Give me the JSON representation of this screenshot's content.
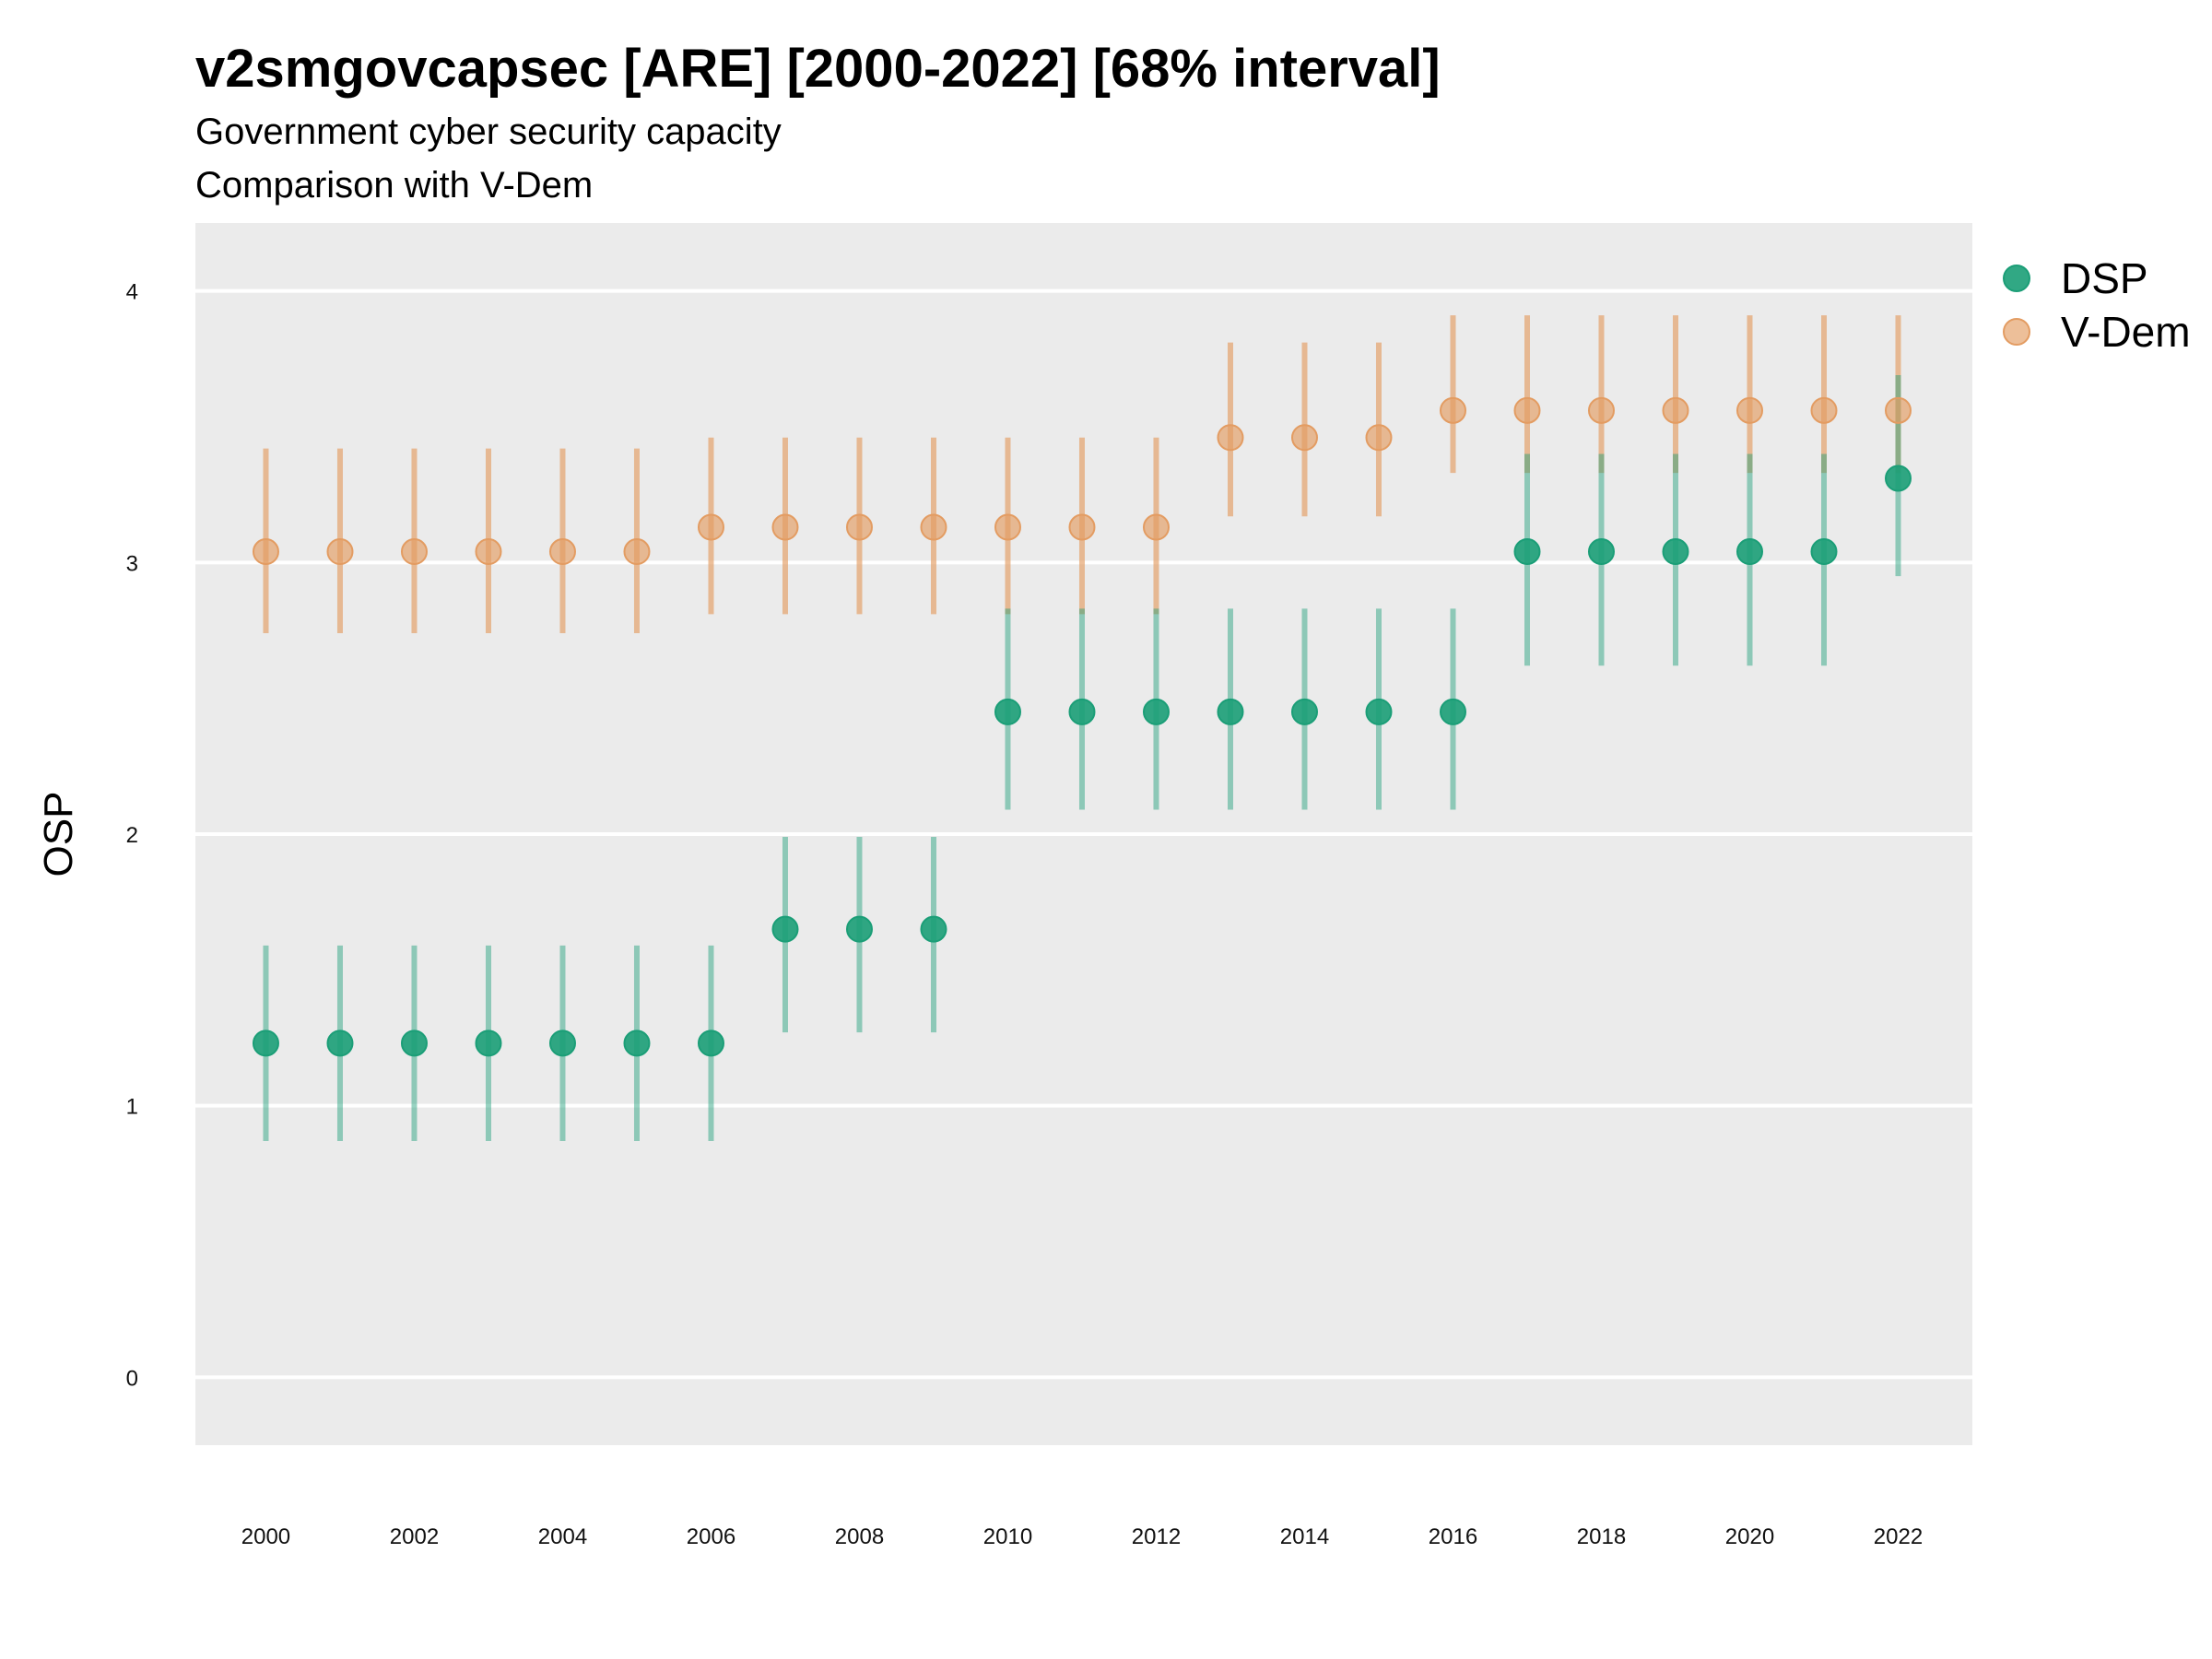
{
  "colors": {
    "dsp": "#1b9e77",
    "vdem": "#e39c62",
    "panel": "#ebebeb",
    "grid": "#ffffff"
  },
  "chart_data": {
    "type": "scatter",
    "title": "v2smgovcapsec [ARE] [2000-2022] [68% interval]",
    "subtitle": "Government cyber security capacity",
    "subtitle2": "Comparison with V-Dem",
    "xlabel": "",
    "ylabel": "OSP",
    "ylim": [
      -0.25,
      4.25
    ],
    "xlim": [
      1999.05,
      2023.0
    ],
    "yticks": [
      0,
      1,
      2,
      3,
      4
    ],
    "xticks": [
      2000,
      2002,
      2004,
      2006,
      2008,
      2010,
      2012,
      2014,
      2016,
      2018,
      2020,
      2022
    ],
    "legend_position": "right-top",
    "series": [
      {
        "name": "DSP",
        "x": [
          2000,
          2001,
          2002,
          2003,
          2004,
          2005,
          2006,
          2007,
          2008,
          2009,
          2010,
          2011,
          2012,
          2013,
          2014,
          2015,
          2016,
          2017,
          2018,
          2019,
          2020,
          2021,
          2022
        ],
        "y": [
          1.23,
          1.23,
          1.23,
          1.23,
          1.23,
          1.23,
          1.23,
          1.65,
          1.65,
          1.65,
          2.45,
          2.45,
          2.45,
          2.45,
          2.45,
          2.45,
          2.45,
          3.04,
          3.04,
          3.04,
          3.04,
          3.04,
          3.31
        ],
        "lower": [
          0.87,
          0.87,
          0.87,
          0.87,
          0.87,
          0.87,
          0.87,
          1.27,
          1.27,
          1.27,
          2.09,
          2.09,
          2.09,
          2.09,
          2.09,
          2.09,
          2.09,
          2.62,
          2.62,
          2.62,
          2.62,
          2.62,
          2.95
        ],
        "upper": [
          1.59,
          1.59,
          1.59,
          1.59,
          1.59,
          1.59,
          1.59,
          1.99,
          1.99,
          1.99,
          2.83,
          2.83,
          2.83,
          2.83,
          2.83,
          2.83,
          2.83,
          3.4,
          3.4,
          3.4,
          3.4,
          3.4,
          3.69
        ]
      },
      {
        "name": "V-Dem",
        "x": [
          2000,
          2001,
          2002,
          2003,
          2004,
          2005,
          2006,
          2007,
          2008,
          2009,
          2010,
          2011,
          2012,
          2013,
          2014,
          2015,
          2016,
          2017,
          2018,
          2019,
          2020,
          2021,
          2022
        ],
        "y": [
          3.04,
          3.04,
          3.04,
          3.04,
          3.04,
          3.04,
          3.13,
          3.13,
          3.13,
          3.13,
          3.13,
          3.13,
          3.13,
          3.46,
          3.46,
          3.46,
          3.56,
          3.56,
          3.56,
          3.56,
          3.56,
          3.56,
          3.56
        ],
        "lower": [
          2.74,
          2.74,
          2.74,
          2.74,
          2.74,
          2.74,
          2.81,
          2.81,
          2.81,
          2.81,
          2.81,
          2.81,
          2.81,
          3.17,
          3.17,
          3.17,
          3.33,
          3.33,
          3.33,
          3.33,
          3.33,
          3.33,
          3.33
        ],
        "upper": [
          3.42,
          3.42,
          3.42,
          3.42,
          3.42,
          3.42,
          3.46,
          3.46,
          3.46,
          3.46,
          3.46,
          3.46,
          3.46,
          3.81,
          3.81,
          3.81,
          3.91,
          3.91,
          3.91,
          3.91,
          3.91,
          3.91,
          3.91
        ]
      }
    ]
  }
}
